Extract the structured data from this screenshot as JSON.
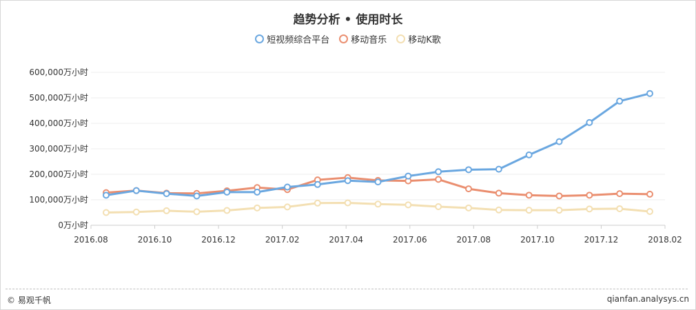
{
  "chart_data": {
    "type": "line",
    "title": "趋势分析 • 使用时长",
    "categories": [
      "2016.08",
      "2016.09",
      "2016.10",
      "2016.11",
      "2016.12",
      "2017.01",
      "2017.02",
      "2017.03",
      "2017.04",
      "2017.05",
      "2017.06",
      "2017.07",
      "2017.08",
      "2017.09",
      "2017.10",
      "2017.11",
      "2017.12",
      "2018.01",
      "2018.02"
    ],
    "x_tick_labels": [
      "2016.08",
      "2016.10",
      "2016.12",
      "2017.02",
      "2017.04",
      "2017.06",
      "2017.08",
      "2017.10",
      "2017.12",
      "2018.02"
    ],
    "y_ticks": [
      0,
      100000,
      200000,
      300000,
      400000,
      500000,
      600000
    ],
    "y_tick_labels": [
      "0万小时",
      "100,000万小时",
      "200,000万小时",
      "300,000万小时",
      "400,000万小时",
      "500,000万小时",
      "600,000万小时"
    ],
    "ylim": [
      0,
      600000
    ],
    "grid": true,
    "legend_position": "top-center",
    "series": [
      {
        "name": "短视频综合平台",
        "color": "#6aa7e0",
        "values": [
          118000,
          136000,
          124000,
          115000,
          130000,
          130000,
          150000,
          160000,
          175000,
          170000,
          193000,
          210000,
          218000,
          220000,
          276000,
          328000,
          403000,
          487000,
          517000
        ]
      },
      {
        "name": "移动音乐",
        "color": "#ea8e6f",
        "values": [
          128000,
          136000,
          126000,
          125000,
          135000,
          148000,
          140000,
          178000,
          187000,
          176000,
          174000,
          180000,
          143000,
          126000,
          118000,
          115000,
          118000,
          124000,
          122000
        ]
      },
      {
        "name": "移动K歌",
        "color": "#f3dfb2",
        "values": [
          50000,
          52000,
          57000,
          53000,
          58000,
          68000,
          72000,
          87000,
          88000,
          83000,
          80000,
          73000,
          68000,
          60000,
          59000,
          59000,
          64000,
          65000,
          54000
        ]
      }
    ]
  },
  "footer": {
    "copyright": "© 易观千帆",
    "source": "qianfan.analysys.cn"
  }
}
